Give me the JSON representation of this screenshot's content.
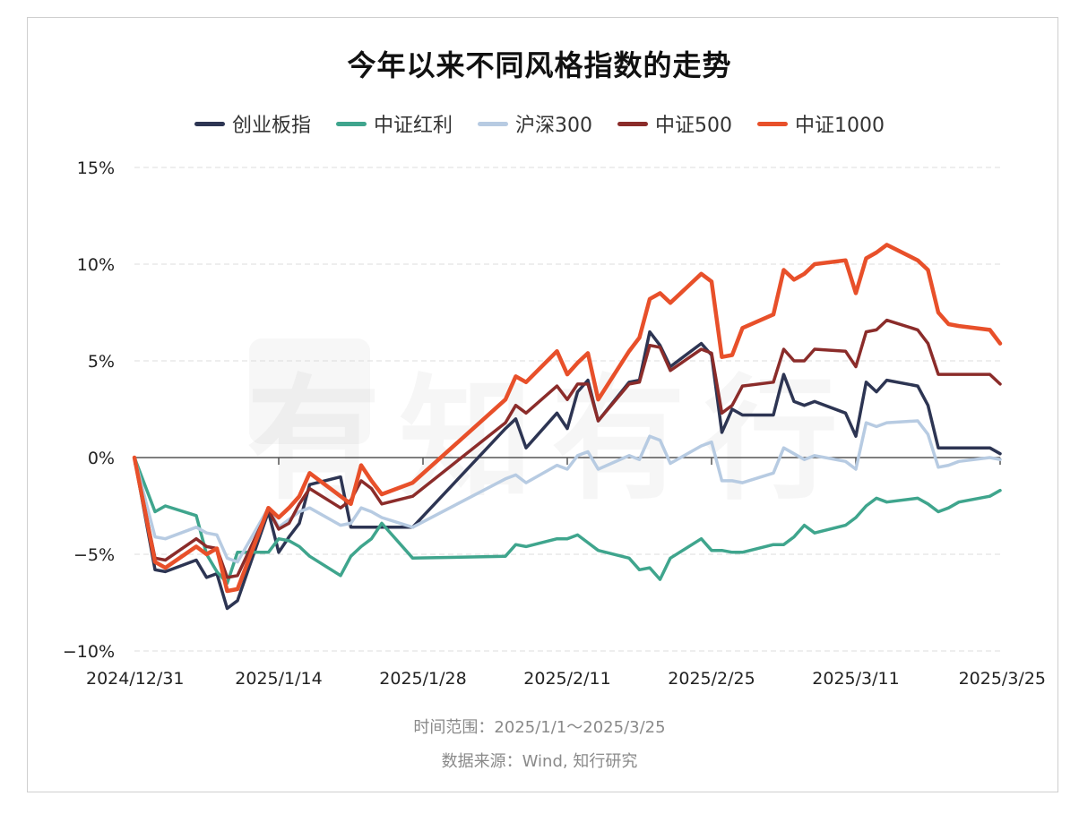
{
  "title": "今年以来不同风格指数的走势",
  "footer": {
    "range": "时间范围：2025/1/1～2025/3/25",
    "source": "数据来源：Wind, 知行研究"
  },
  "watermark": "有知有行",
  "chart_data": {
    "type": "line",
    "title": "今年以来不同风格指数的走势",
    "ylim": [
      -10,
      15
    ],
    "yticks": [
      15,
      10,
      5,
      0,
      -5,
      -10
    ],
    "ytick_labels": [
      "15%",
      "10%",
      "5%",
      "0%",
      "−5%",
      "−10%"
    ],
    "xlim": [
      "2024-12-31",
      "2025-03-25"
    ],
    "xticks": [
      "2024-12-31",
      "2025-01-14",
      "2025-01-28",
      "2025-02-11",
      "2025-02-25",
      "2025-03-11",
      "2025-03-25"
    ],
    "xtick_labels": [
      "2024/12/31",
      "2025/1/14",
      "2025/1/28",
      "2025/2/11",
      "2025/2/25",
      "2025/3/11",
      "2025/3/25"
    ],
    "grid": "horizontal-dashed",
    "legend_position": "top-center",
    "dates": [
      "2024-12-31",
      "2025-01-02",
      "2025-01-03",
      "2025-01-06",
      "2025-01-07",
      "2025-01-08",
      "2025-01-09",
      "2025-01-10",
      "2025-01-13",
      "2025-01-14",
      "2025-01-15",
      "2025-01-16",
      "2025-01-17",
      "2025-01-20",
      "2025-01-21",
      "2025-01-22",
      "2025-01-23",
      "2025-01-24",
      "2025-01-27",
      "2025-02-05",
      "2025-02-06",
      "2025-02-07",
      "2025-02-10",
      "2025-02-11",
      "2025-02-12",
      "2025-02-13",
      "2025-02-14",
      "2025-02-17",
      "2025-02-18",
      "2025-02-19",
      "2025-02-20",
      "2025-02-21",
      "2025-02-24",
      "2025-02-25",
      "2025-02-26",
      "2025-02-27",
      "2025-02-28",
      "2025-03-03",
      "2025-03-04",
      "2025-03-05",
      "2025-03-06",
      "2025-03-07",
      "2025-03-10",
      "2025-03-11",
      "2025-03-12",
      "2025-03-13",
      "2025-03-14",
      "2025-03-17",
      "2025-03-18",
      "2025-03-19",
      "2025-03-20",
      "2025-03-21",
      "2025-03-24",
      "2025-03-25"
    ],
    "series": [
      {
        "name": "创业板指",
        "color": "#2d3553",
        "values": [
          0.0,
          -5.8,
          -5.9,
          -5.3,
          -6.2,
          -6.0,
          -7.8,
          -7.4,
          -2.8,
          -4.9,
          -4.1,
          -3.4,
          -1.4,
          -1.0,
          -3.6,
          -3.6,
          -3.6,
          -3.6,
          -3.6,
          1.5,
          2.0,
          0.5,
          2.3,
          1.5,
          3.4,
          4.0,
          1.9,
          3.9,
          4.0,
          6.5,
          5.8,
          4.7,
          5.9,
          5.3,
          1.3,
          2.5,
          2.2,
          2.2,
          4.3,
          2.9,
          2.7,
          2.9,
          2.3,
          1.1,
          3.9,
          3.4,
          4.0,
          3.7,
          2.7,
          0.5,
          0.5,
          0.5,
          0.5,
          0.2
        ]
      },
      {
        "name": "中证红利",
        "color": "#3fa58d",
        "values": [
          0.0,
          -2.8,
          -2.5,
          -3.0,
          -5.0,
          -5.9,
          -6.5,
          -4.9,
          -4.9,
          -4.2,
          -4.3,
          -4.6,
          -5.1,
          -6.1,
          -5.1,
          -4.6,
          -4.2,
          -3.4,
          -5.2,
          -5.1,
          -4.5,
          -4.6,
          -4.2,
          -4.2,
          -4.0,
          -4.4,
          -4.8,
          -5.2,
          -5.8,
          -5.7,
          -6.3,
          -5.2,
          -4.2,
          -4.8,
          -4.8,
          -4.9,
          -4.9,
          -4.5,
          -4.5,
          -4.1,
          -3.5,
          -3.9,
          -3.5,
          -3.1,
          -2.5,
          -2.1,
          -2.3,
          -2.1,
          -2.4,
          -2.8,
          -2.6,
          -2.3,
          -2.0,
          -1.7
        ]
      },
      {
        "name": "沪深300",
        "color": "#b7cbe2",
        "values": [
          0.0,
          -4.1,
          -4.2,
          -3.6,
          -3.9,
          -4.0,
          -5.2,
          -5.4,
          -2.6,
          -3.6,
          -3.2,
          -2.8,
          -2.6,
          -3.5,
          -3.4,
          -2.6,
          -2.8,
          -3.1,
          -3.6,
          -1.1,
          -0.9,
          -1.3,
          -0.4,
          -0.6,
          0.1,
          0.3,
          -0.6,
          0.1,
          -0.1,
          1.1,
          0.9,
          -0.3,
          0.6,
          0.8,
          -1.2,
          -1.2,
          -1.3,
          -0.8,
          0.5,
          0.2,
          -0.1,
          0.1,
          -0.2,
          -0.6,
          1.8,
          1.6,
          1.8,
          1.9,
          1.2,
          -0.5,
          -0.4,
          -0.2,
          0.0,
          -0.1
        ]
      },
      {
        "name": "中证500",
        "color": "#8b2c2a",
        "values": [
          0.0,
          -5.2,
          -5.3,
          -4.2,
          -4.6,
          -4.7,
          -6.2,
          -6.1,
          -2.7,
          -3.7,
          -3.4,
          -2.4,
          -1.6,
          -2.6,
          -2.2,
          -1.2,
          -1.6,
          -2.4,
          -2.0,
          1.8,
          2.7,
          2.3,
          3.7,
          3.0,
          3.8,
          3.8,
          1.9,
          3.8,
          3.9,
          5.8,
          5.7,
          4.5,
          5.6,
          5.4,
          2.3,
          2.7,
          3.7,
          3.9,
          5.6,
          5.0,
          5.0,
          5.6,
          5.5,
          4.7,
          6.5,
          6.6,
          7.1,
          6.6,
          5.9,
          4.3,
          4.3,
          4.3,
          4.3,
          3.8
        ]
      },
      {
        "name": "中证1000",
        "color": "#e8502a",
        "values": [
          0.0,
          -5.4,
          -5.7,
          -4.6,
          -5.0,
          -4.7,
          -6.9,
          -6.8,
          -2.6,
          -3.1,
          -2.6,
          -2.0,
          -0.8,
          -2.0,
          -2.4,
          -0.4,
          -1.2,
          -1.9,
          -1.3,
          3.0,
          4.2,
          3.9,
          5.5,
          4.3,
          4.9,
          5.4,
          3.0,
          5.5,
          6.2,
          8.2,
          8.5,
          8.0,
          9.5,
          9.1,
          5.2,
          5.3,
          6.7,
          7.4,
          9.7,
          9.2,
          9.5,
          10.0,
          10.2,
          8.5,
          10.3,
          10.6,
          11.0,
          10.2,
          9.7,
          7.5,
          6.9,
          6.8,
          6.6,
          5.9
        ]
      }
    ]
  }
}
